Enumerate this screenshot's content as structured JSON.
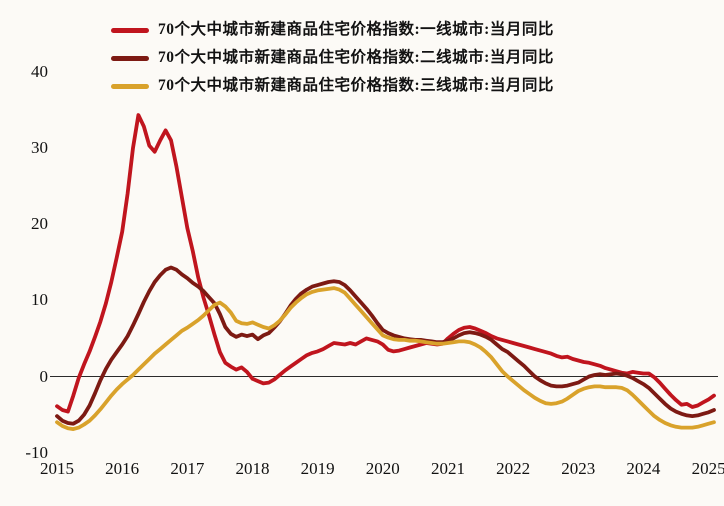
{
  "chart_data": {
    "type": "line",
    "title": "",
    "x_unit": "month",
    "x_start": "2015-01",
    "x_end": "2025-02",
    "x_ticks": [
      "2015",
      "2016",
      "2017",
      "2018",
      "2019",
      "2020",
      "2021",
      "2022",
      "2023",
      "2024",
      "2025"
    ],
    "y_ticks": [
      "40",
      "30",
      "20",
      "10",
      "0",
      "-10"
    ],
    "y_tick_values": [
      40,
      30,
      20,
      10,
      0,
      -10
    ],
    "ylim": [
      -10,
      40
    ],
    "grid": false,
    "zero_line": true,
    "legend_position": "top-left",
    "series": [
      {
        "name": "70个大中城市新建商品住宅价格指数:一线城市:当月同比",
        "color": "#c0151e",
        "values": [
          -3.9,
          -4.4,
          -4.6,
          -2.5,
          -0.2,
          1.6,
          3.3,
          5.2,
          7.2,
          9.6,
          12.4,
          15.6,
          19.0,
          24.0,
          30.0,
          34.3,
          32.8,
          30.3,
          29.5,
          31.0,
          32.3,
          31.0,
          27.5,
          23.5,
          19.5,
          16.5,
          13.0,
          10.3,
          8.0,
          5.5,
          3.2,
          1.8,
          1.3,
          0.9,
          1.2,
          0.6,
          -0.3,
          -0.6,
          -0.9,
          -0.8,
          -0.4,
          0.2,
          0.8,
          1.3,
          1.8,
          2.3,
          2.8,
          3.1,
          3.3,
          3.6,
          4.0,
          4.4,
          4.3,
          4.2,
          4.4,
          4.2,
          4.6,
          5.0,
          4.8,
          4.6,
          4.2,
          3.5,
          3.3,
          3.4,
          3.6,
          3.8,
          4.0,
          4.2,
          4.4,
          4.3,
          4.2,
          4.3,
          5.0,
          5.6,
          6.1,
          6.4,
          6.5,
          6.3,
          6.0,
          5.7,
          5.3,
          5.0,
          4.8,
          4.6,
          4.4,
          4.2,
          4.0,
          3.8,
          3.6,
          3.4,
          3.2,
          3.0,
          2.7,
          2.5,
          2.6,
          2.3,
          2.1,
          1.9,
          1.8,
          1.6,
          1.4,
          1.1,
          0.9,
          0.7,
          0.5,
          0.4,
          0.6,
          0.5,
          0.4,
          0.4,
          -0.1,
          -0.8,
          -1.6,
          -2.4,
          -3.1,
          -3.7,
          -3.6,
          -4.0,
          -3.8,
          -3.4,
          -3.0,
          -2.5
        ]
      },
      {
        "name": "70个大中城市新建商品住宅价格指数:二线城市:当月同比",
        "color": "#7d1a13",
        "values": [
          -5.2,
          -5.8,
          -6.1,
          -6.2,
          -5.8,
          -5.0,
          -3.8,
          -2.2,
          -0.5,
          1.0,
          2.2,
          3.2,
          4.2,
          5.3,
          6.7,
          8.2,
          9.8,
          11.2,
          12.4,
          13.3,
          14.0,
          14.3,
          14.0,
          13.4,
          12.9,
          12.3,
          11.8,
          11.2,
          10.4,
          9.6,
          8.2,
          6.5,
          5.6,
          5.2,
          5.5,
          5.3,
          5.5,
          4.9,
          5.4,
          5.7,
          6.4,
          7.2,
          8.2,
          9.3,
          10.2,
          10.9,
          11.4,
          11.8,
          12.0,
          12.2,
          12.4,
          12.5,
          12.4,
          12.0,
          11.3,
          10.5,
          9.7,
          8.9,
          8.0,
          7.0,
          6.1,
          5.7,
          5.4,
          5.2,
          5.0,
          4.9,
          4.8,
          4.8,
          4.7,
          4.6,
          4.5,
          4.5,
          4.7,
          5.0,
          5.4,
          5.7,
          5.8,
          5.7,
          5.5,
          5.2,
          4.8,
          4.2,
          3.6,
          3.2,
          2.6,
          2.0,
          1.4,
          0.7,
          0.0,
          -0.5,
          -0.9,
          -1.2,
          -1.3,
          -1.3,
          -1.2,
          -1.0,
          -0.8,
          -0.4,
          0.0,
          0.2,
          0.3,
          0.2,
          0.3,
          0.4,
          0.3,
          0.1,
          -0.2,
          -0.6,
          -1.0,
          -1.5,
          -2.2,
          -2.9,
          -3.6,
          -4.2,
          -4.6,
          -4.9,
          -5.1,
          -5.2,
          -5.1,
          -4.9,
          -4.7,
          -4.4
        ]
      },
      {
        "name": "70个大中城市新建商品住宅价格指数:三线城市:当月同比",
        "color": "#d9a22b",
        "values": [
          -6.0,
          -6.5,
          -6.8,
          -6.9,
          -6.7,
          -6.3,
          -5.8,
          -5.1,
          -4.3,
          -3.4,
          -2.5,
          -1.7,
          -1.0,
          -0.4,
          0.2,
          0.9,
          1.6,
          2.3,
          3.0,
          3.6,
          4.2,
          4.8,
          5.4,
          6.0,
          6.4,
          6.9,
          7.4,
          8.0,
          8.7,
          9.4,
          9.7,
          9.2,
          8.4,
          7.3,
          7.0,
          6.9,
          7.1,
          6.8,
          6.5,
          6.3,
          6.7,
          7.3,
          8.1,
          9.0,
          9.7,
          10.3,
          10.8,
          11.1,
          11.3,
          11.4,
          11.5,
          11.6,
          11.4,
          11.0,
          10.2,
          9.4,
          8.6,
          7.8,
          7.0,
          6.2,
          5.4,
          5.1,
          4.9,
          4.8,
          4.8,
          4.7,
          4.7,
          4.6,
          4.5,
          4.4,
          4.3,
          4.3,
          4.4,
          4.5,
          4.6,
          4.6,
          4.5,
          4.2,
          3.8,
          3.2,
          2.5,
          1.6,
          0.7,
          0.0,
          -0.6,
          -1.2,
          -1.8,
          -2.3,
          -2.8,
          -3.2,
          -3.5,
          -3.6,
          -3.5,
          -3.3,
          -2.9,
          -2.4,
          -1.9,
          -1.6,
          -1.4,
          -1.3,
          -1.3,
          -1.4,
          -1.4,
          -1.4,
          -1.5,
          -1.8,
          -2.4,
          -3.1,
          -3.8,
          -4.5,
          -5.2,
          -5.7,
          -6.1,
          -6.4,
          -6.6,
          -6.7,
          -6.7,
          -6.7,
          -6.6,
          -6.4,
          -6.2,
          -6.0
        ]
      }
    ]
  },
  "colors": {
    "background": "#fcfaf6",
    "axis_line": "#2b2b2b",
    "text": "#111111"
  }
}
